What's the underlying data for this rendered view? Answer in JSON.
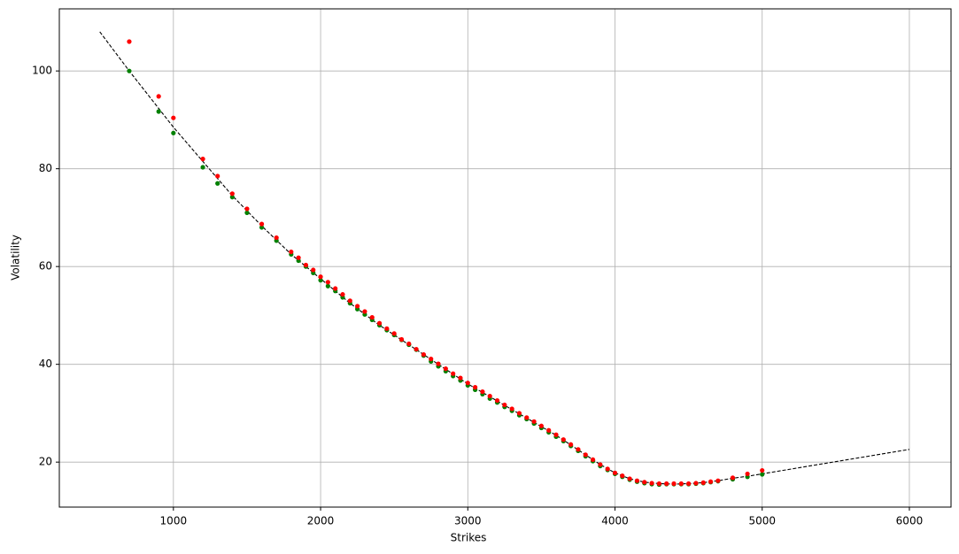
{
  "chart_data": {
    "type": "scatter",
    "xlabel": "Strikes",
    "ylabel": "Volatility",
    "xlim": [
      225,
      6283
    ],
    "ylim": [
      10.8,
      112.7
    ],
    "xticks": [
      1000,
      2000,
      3000,
      4000,
      5000,
      6000
    ],
    "yticks": [
      20,
      40,
      60,
      80,
      100
    ],
    "grid": true,
    "series": [
      {
        "kind": "dashed-line",
        "color": "#000000",
        "x": [
          500,
          700,
          1000,
          1200,
          1400,
          1600,
          1800,
          2000,
          2200,
          2400,
          2600,
          2800,
          3000,
          3200,
          3400,
          3600,
          3800,
          3900,
          4000,
          4100,
          4200,
          4300,
          4400,
          4500,
          4600,
          4700,
          4800,
          4900,
          5000,
          6000
        ],
        "values": [
          108,
          100,
          88.5,
          81.5,
          74.5,
          68.3,
          62.5,
          57.5,
          52.5,
          48,
          44,
          40,
          36,
          32.5,
          29,
          25.5,
          21.5,
          19.5,
          17.8,
          16.6,
          15.9,
          15.6,
          15.5,
          15.6,
          15.8,
          16.2,
          16.7,
          17.1,
          17.6,
          22.6
        ]
      },
      {
        "kind": "points",
        "color": "#008000",
        "x": [
          700,
          900,
          1000,
          1200,
          1300,
          1400,
          1500,
          1600,
          1700,
          1800,
          1850,
          1900,
          1950,
          2000,
          2050,
          2100,
          2150,
          2200,
          2250,
          2300,
          2350,
          2400,
          2450,
          2500,
          2550,
          2600,
          2650,
          2700,
          2750,
          2800,
          2850,
          2900,
          2950,
          3000,
          3050,
          3100,
          3150,
          3200,
          3250,
          3300,
          3350,
          3400,
          3450,
          3500,
          3550,
          3600,
          3650,
          3700,
          3750,
          3800,
          3850,
          3900,
          3950,
          4000,
          4050,
          4100,
          4150,
          4200,
          4250,
          4300,
          4350,
          4400,
          4450,
          4500,
          4550,
          4600,
          4650,
          4700,
          4800,
          4900,
          5000
        ],
        "values": [
          100,
          91.7,
          87.3,
          80.3,
          77,
          74.2,
          71,
          68,
          65.3,
          62.5,
          61.2,
          60,
          58.7,
          57.2,
          56,
          55,
          53.7,
          52.5,
          51.3,
          50.2,
          49.1,
          48,
          47,
          46,
          45,
          44,
          43,
          41.8,
          40.6,
          39.6,
          38.6,
          37.6,
          36.7,
          35.7,
          34.8,
          33.9,
          33,
          32.2,
          31.3,
          30.5,
          29.6,
          28.8,
          27.9,
          27,
          26.1,
          25.2,
          24.3,
          23.3,
          22.3,
          21.2,
          20.2,
          19.2,
          18.4,
          17.6,
          17,
          16.4,
          16,
          15.7,
          15.5,
          15.4,
          15.5,
          15.5,
          15.5,
          15.5,
          15.6,
          15.7,
          15.9,
          16.1,
          16.5,
          17,
          17.5
        ]
      },
      {
        "kind": "points",
        "color": "#ff0000",
        "x": [
          700,
          900,
          1000,
          1200,
          1300,
          1400,
          1500,
          1600,
          1700,
          1800,
          1850,
          1900,
          1950,
          2000,
          2050,
          2100,
          2150,
          2200,
          2250,
          2300,
          2350,
          2400,
          2450,
          2500,
          2550,
          2600,
          2650,
          2700,
          2750,
          2800,
          2850,
          2900,
          2950,
          3000,
          3050,
          3100,
          3150,
          3200,
          3250,
          3300,
          3350,
          3400,
          3450,
          3500,
          3550,
          3600,
          3650,
          3700,
          3750,
          3800,
          3850,
          3900,
          3950,
          4000,
          4050,
          4100,
          4150,
          4200,
          4250,
          4300,
          4350,
          4400,
          4450,
          4500,
          4550,
          4600,
          4650,
          4700,
          4800,
          4900,
          5000
        ],
        "values": [
          106,
          94.8,
          90.4,
          82,
          78.5,
          74.9,
          71.8,
          68.7,
          65.9,
          63,
          61.8,
          60.3,
          59.3,
          57.9,
          56.8,
          55.5,
          54.3,
          53,
          51.9,
          50.8,
          49.6,
          48.4,
          47.3,
          46.3,
          45.1,
          44.2,
          43.1,
          42,
          41.1,
          40.1,
          39.1,
          38.1,
          37.2,
          36.2,
          35.3,
          34.4,
          33.5,
          32.6,
          31.7,
          30.9,
          30,
          29.1,
          28.3,
          27.4,
          26.5,
          25.6,
          24.6,
          23.6,
          22.6,
          21.5,
          20.5,
          19.5,
          18.6,
          17.8,
          17.2,
          16.6,
          16.2,
          15.9,
          15.7,
          15.6,
          15.6,
          15.6,
          15.6,
          15.6,
          15.7,
          15.8,
          16,
          16.2,
          16.8,
          17.6,
          18.3
        ]
      }
    ]
  }
}
